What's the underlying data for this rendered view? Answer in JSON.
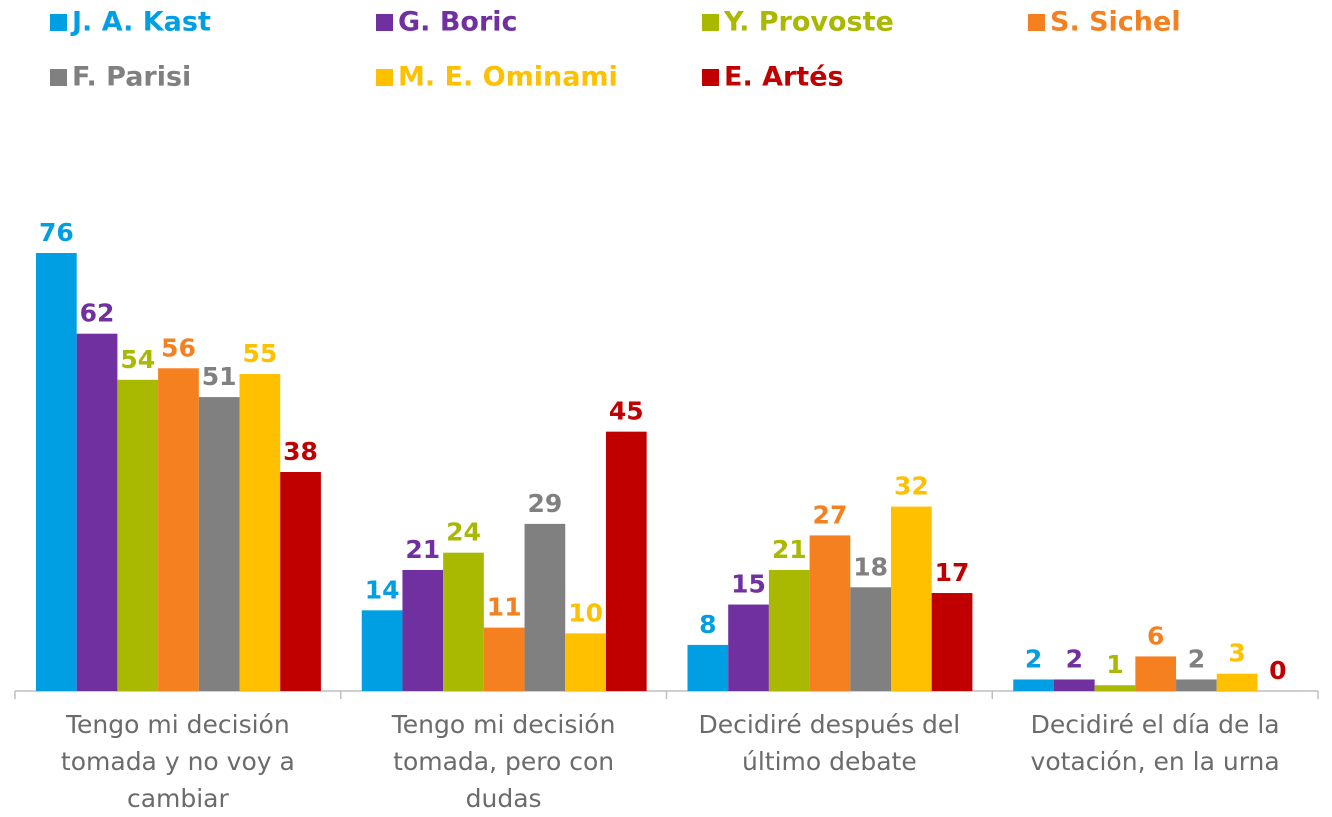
{
  "chart_data": {
    "type": "bar",
    "categories": [
      "Tengo mi decisión tomada y no voy a cambiar",
      "Tengo mi decisión tomada, pero con dudas",
      "Decidiré después del último debate",
      "Decidiré el día de la votación, en la urna"
    ],
    "series": [
      {
        "name": "J. A. Kast",
        "color": "#009fe3",
        "values": [
          76,
          14,
          8,
          2
        ]
      },
      {
        "name": "G. Boric",
        "color": "#7030a0",
        "values": [
          62,
          21,
          15,
          2
        ]
      },
      {
        "name": "Y. Provoste",
        "color": "#a9b800",
        "values": [
          54,
          24,
          21,
          1
        ]
      },
      {
        "name": "S. Sichel",
        "color": "#f5801f",
        "values": [
          56,
          11,
          27,
          6
        ]
      },
      {
        "name": "F. Parisi",
        "color": "#808080",
        "values": [
          51,
          29,
          18,
          2
        ]
      },
      {
        "name": "M. E. Ominami",
        "color": "#ffc000",
        "values": [
          55,
          10,
          32,
          3
        ]
      },
      {
        "name": "E. Artés",
        "color": "#c00000",
        "values": [
          38,
          45,
          17,
          0
        ]
      }
    ]
  }
}
